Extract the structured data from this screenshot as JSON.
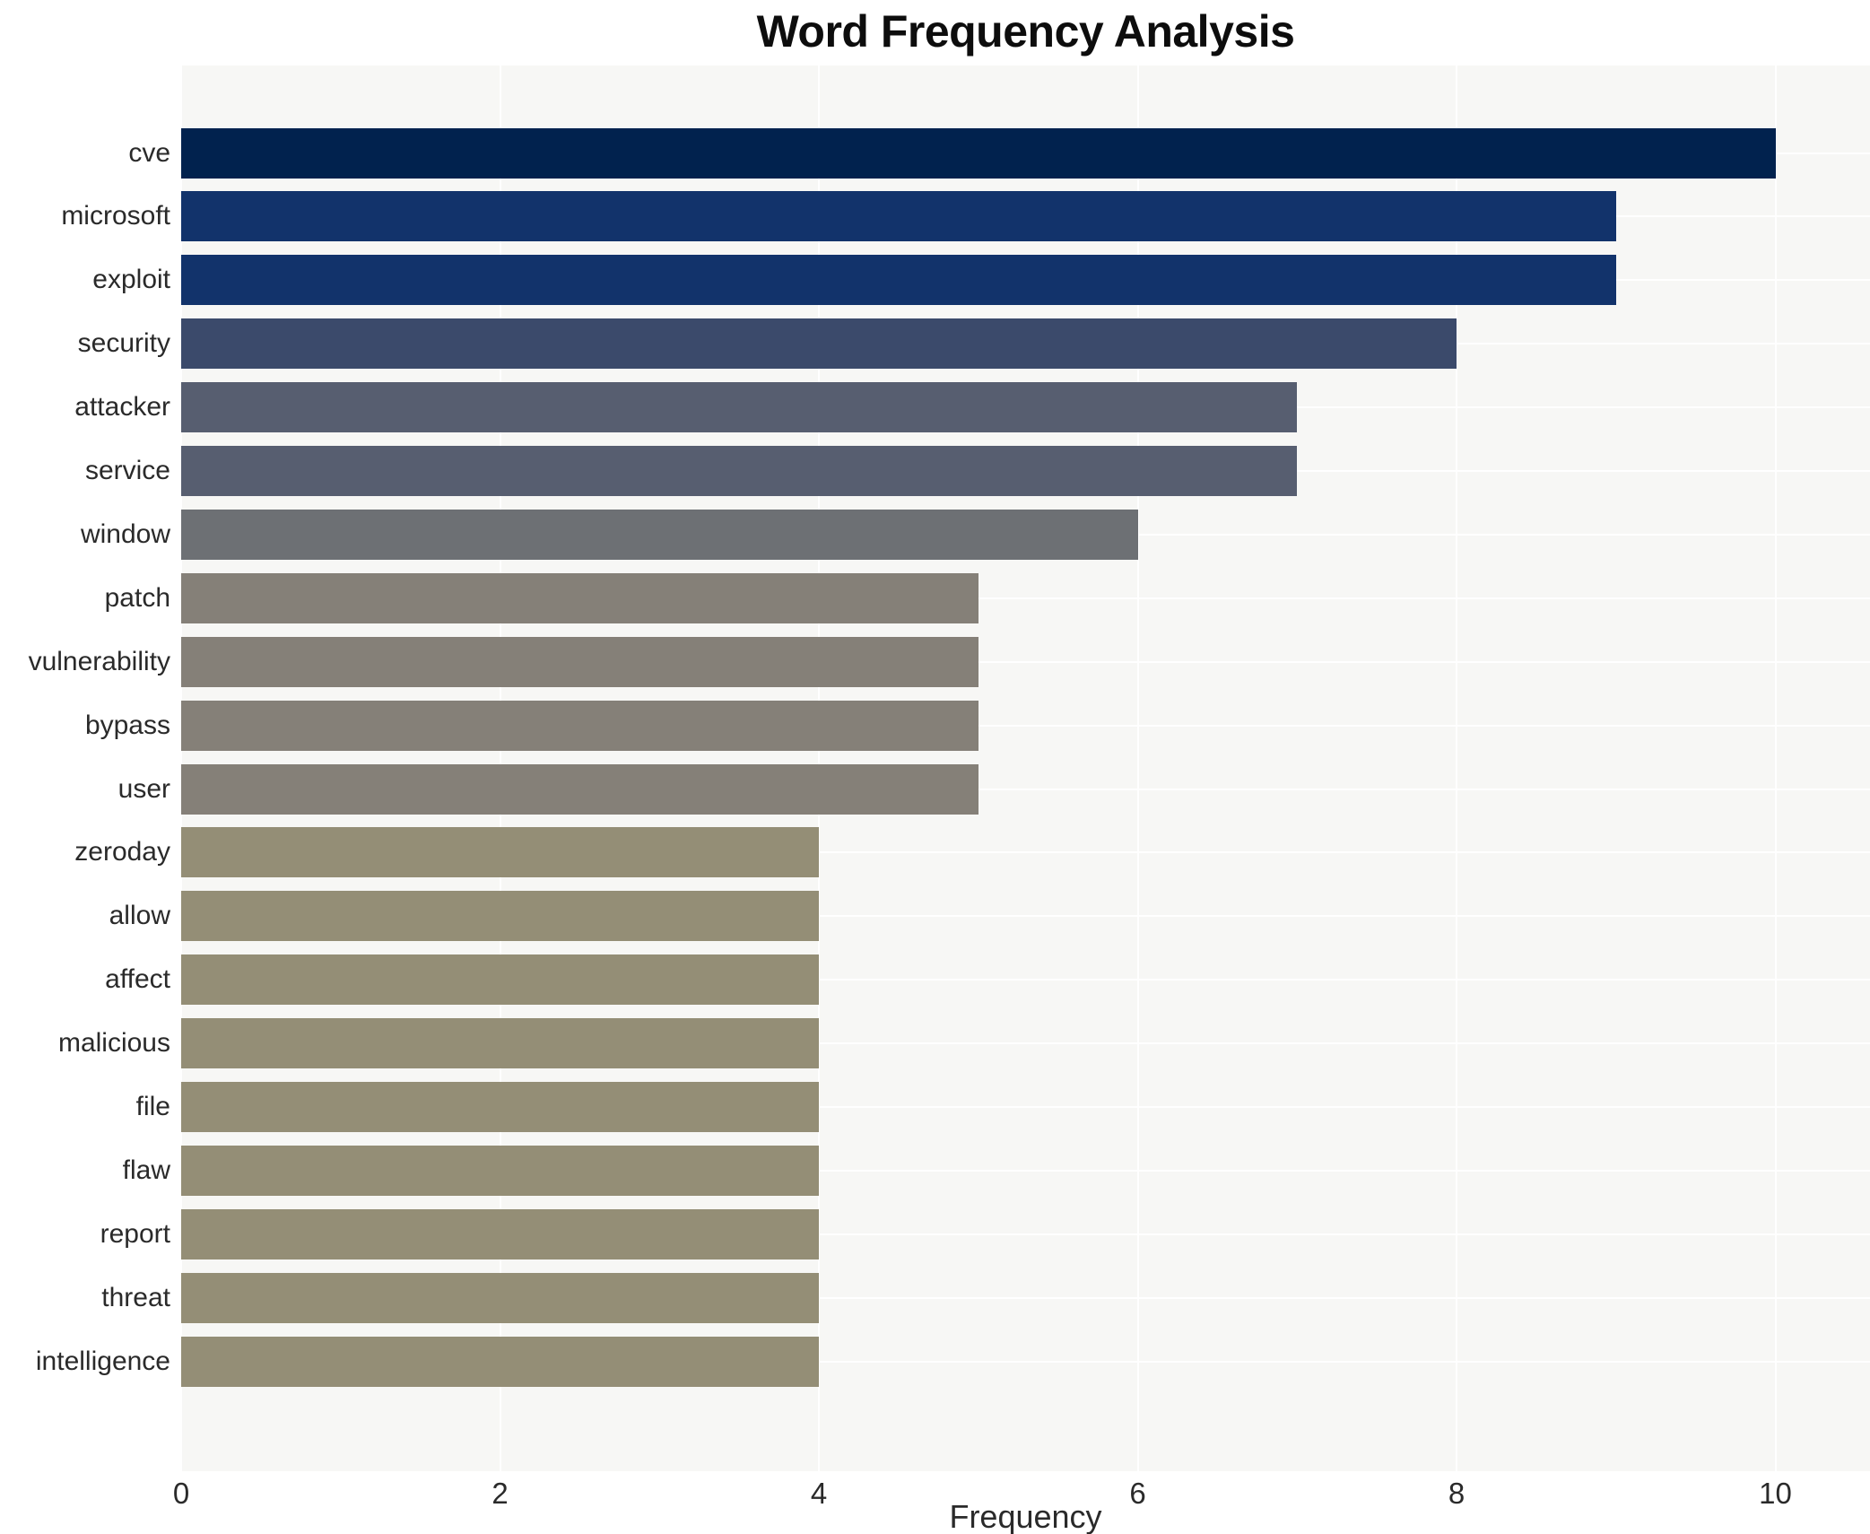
{
  "chart_data": {
    "type": "bar",
    "orientation": "horizontal",
    "title": "Word Frequency Analysis",
    "xlabel": "Frequency",
    "ylabel": "",
    "categories": [
      "cve",
      "microsoft",
      "exploit",
      "security",
      "attacker",
      "service",
      "window",
      "patch",
      "vulnerability",
      "bypass",
      "user",
      "zeroday",
      "allow",
      "affect",
      "malicious",
      "file",
      "flaw",
      "report",
      "threat",
      "intelligence"
    ],
    "values": [
      10,
      9,
      9,
      8,
      7,
      7,
      6,
      5,
      5,
      5,
      5,
      4,
      4,
      4,
      4,
      4,
      4,
      4,
      4,
      4
    ],
    "xticks": [
      0,
      2,
      4,
      6,
      8,
      10
    ],
    "xlim": [
      0,
      10.6
    ],
    "grid": true,
    "grid_style": "white vertical lines at x ticks and white horizontal lines at category centers on light gray panel",
    "legend_position": "none",
    "colormap": "cividis (dark navy for high values to olive for low values)",
    "bar_colors": [
      "#01224e",
      "#12336b",
      "#12336b",
      "#3b4a6b",
      "#575e70",
      "#575e70",
      "#6d7074",
      "#858078",
      "#858078",
      "#858078",
      "#858078",
      "#948e76",
      "#948e76",
      "#948e76",
      "#948e76",
      "#948e76",
      "#948e76",
      "#948e76",
      "#948e76",
      "#948e76"
    ],
    "value_color_map": {
      "10": "#01224e",
      "9": "#12336b",
      "8": "#3b4a6b",
      "7": "#575e70",
      "6": "#6d7074",
      "5": "#858078",
      "4": "#948e76"
    },
    "panel_bg": "#f7f7f5",
    "page_bg": "#ffffff",
    "grid_color": "#ffffff",
    "tick_label_color": "#2a2a2a",
    "title_color": "#0d0d0d"
  }
}
